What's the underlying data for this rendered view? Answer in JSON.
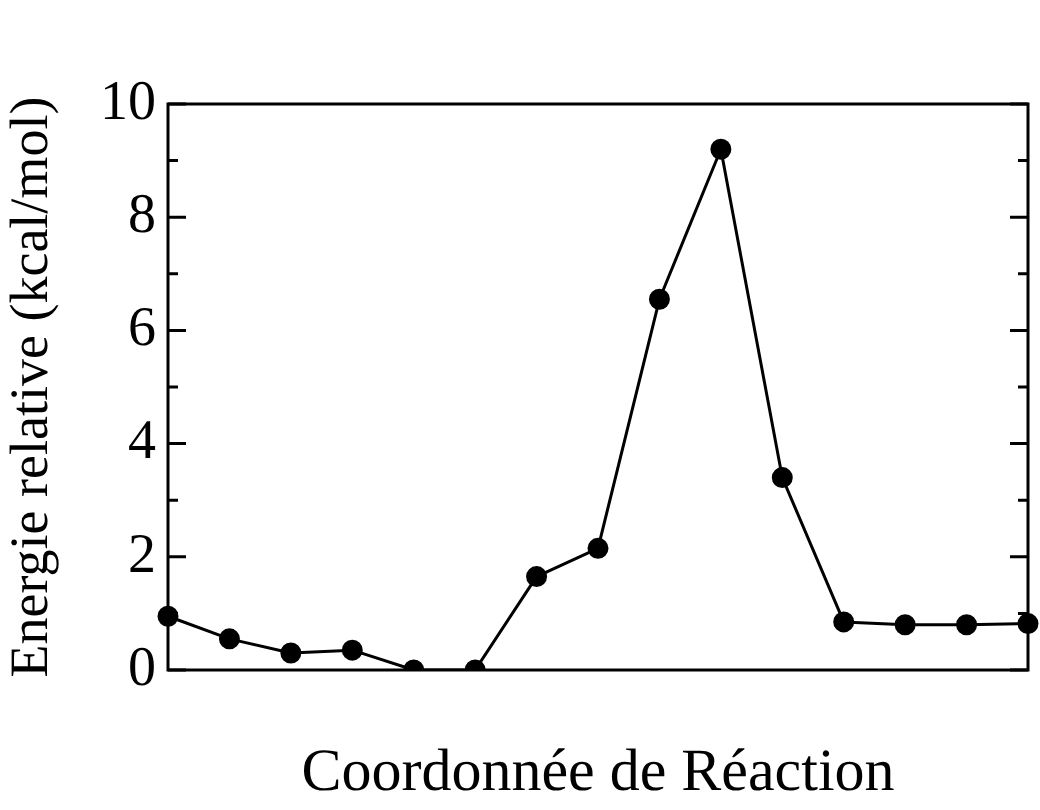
{
  "chart_data": {
    "type": "line",
    "xlabel": "Coordonnée de Réaction",
    "ylabel": "Energie relative (kcal/mol)",
    "categories": [
      null,
      null,
      null,
      null,
      null,
      null,
      null,
      null,
      null,
      null,
      null,
      null,
      null,
      null,
      null
    ],
    "series": [
      {
        "color": "#000000",
        "values": [
          0.95,
          0.55,
          0.3,
          0.35,
          0,
          0,
          1.65,
          2.15,
          6.55,
          9.2,
          3.4,
          0.85,
          0.8,
          0.8,
          0.82
        ]
      }
    ],
    "ylim": [
      0,
      10
    ],
    "yticks": [
      0,
      {
        "value": 1,
        "label": null
      },
      2,
      {
        "value": 3,
        "label": null
      },
      4,
      {
        "value": 5,
        "label": null
      },
      6,
      {
        "value": 7,
        "label": null
      },
      8,
      {
        "value": 9,
        "label": null
      },
      10
    ],
    "tick_labels": "y",
    "marker": "circle",
    "line_style": "solid",
    "grid": false,
    "legend": false
  }
}
